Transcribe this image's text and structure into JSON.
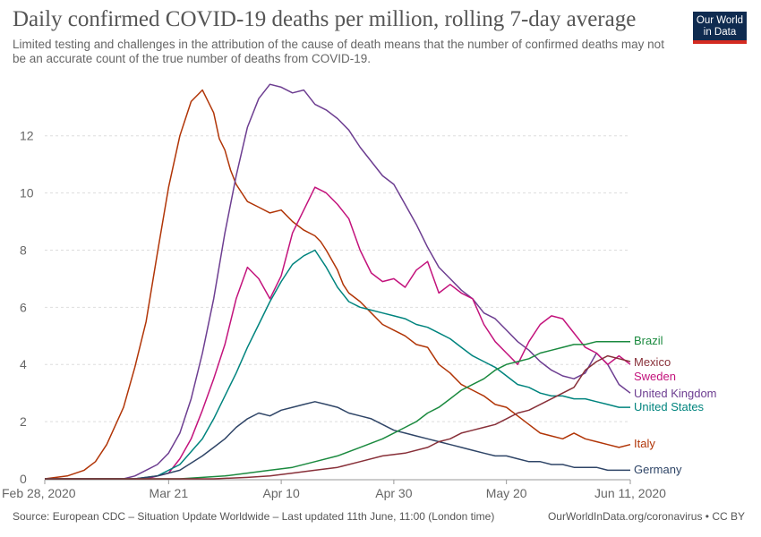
{
  "chart_data": {
    "type": "line",
    "title": "Daily confirmed COVID-19 deaths per million, rolling 7-day average",
    "subtitle": "Limited testing and challenges in the attribution of the cause of death means that the number of confirmed deaths may not be an accurate count of the true number of deaths from COVID-19.",
    "xlabel": "",
    "ylabel": "",
    "x_dates": [
      "2020-02-28",
      "2020-03-21",
      "2020-04-10",
      "2020-04-30",
      "2020-05-20",
      "2020-06-11"
    ],
    "x_tick_labels": [
      "Feb 28, 2020",
      "Mar 21",
      "Apr 10",
      "Apr 30",
      "May 20",
      "Jun 11, 2020"
    ],
    "x_tick_days": [
      0,
      22,
      42,
      62,
      82,
      104
    ],
    "xlim_days": [
      0,
      104
    ],
    "ylim": [
      0,
      13.9
    ],
    "y_ticks": [
      0,
      2,
      4,
      6,
      8,
      10,
      12
    ],
    "grid": "horizontal dashed",
    "series": [
      {
        "name": "Italy",
        "color": "#b13507",
        "x": [
          0,
          4,
          7,
          9,
          11,
          14,
          16,
          18,
          20,
          22,
          24,
          25,
          26,
          28,
          30,
          31,
          32,
          33,
          34,
          36,
          38,
          40,
          42,
          44,
          46,
          48,
          49,
          50,
          52,
          53,
          54,
          56,
          58,
          60,
          62,
          64,
          66,
          68,
          70,
          72,
          74,
          76,
          78,
          80,
          82,
          84,
          86,
          88,
          90,
          92,
          94,
          96,
          98,
          100,
          102,
          104
        ],
        "y": [
          0,
          0.1,
          0.3,
          0.6,
          1.2,
          2.5,
          3.9,
          5.5,
          7.9,
          10.2,
          12.0,
          12.6,
          13.2,
          13.6,
          12.8,
          11.9,
          11.5,
          10.8,
          10.3,
          9.7,
          9.5,
          9.3,
          9.4,
          9.0,
          8.7,
          8.5,
          8.3,
          8.0,
          7.3,
          6.8,
          6.5,
          6.2,
          5.8,
          5.4,
          5.2,
          5.0,
          4.7,
          4.6,
          4.0,
          3.7,
          3.3,
          3.1,
          2.9,
          2.6,
          2.5,
          2.2,
          1.9,
          1.6,
          1.5,
          1.4,
          1.6,
          1.4,
          1.3,
          1.2,
          1.1,
          1.2
        ]
      },
      {
        "name": "United Kingdom",
        "color": "#6d3e91",
        "x": [
          0,
          10,
          14,
          16,
          18,
          20,
          22,
          24,
          26,
          28,
          30,
          32,
          34,
          36,
          38,
          40,
          42,
          44,
          46,
          48,
          50,
          52,
          54,
          56,
          58,
          60,
          62,
          64,
          66,
          68,
          70,
          72,
          74,
          76,
          78,
          80,
          82,
          84,
          86,
          88,
          90,
          92,
          94,
          96,
          98,
          100,
          102,
          104
        ],
        "y": [
          0,
          0,
          0,
          0.1,
          0.3,
          0.5,
          0.9,
          1.6,
          2.8,
          4.4,
          6.3,
          8.6,
          10.6,
          12.3,
          13.3,
          13.8,
          13.7,
          13.5,
          13.6,
          13.1,
          12.9,
          12.6,
          12.2,
          11.6,
          11.1,
          10.6,
          10.3,
          9.6,
          8.9,
          8.1,
          7.4,
          7.0,
          6.6,
          6.3,
          5.8,
          5.6,
          5.2,
          4.8,
          4.5,
          4.1,
          3.8,
          3.6,
          3.5,
          3.7,
          4.4,
          4.0,
          3.3,
          3.0
        ]
      },
      {
        "name": "Sweden",
        "color": "#c3137c",
        "x": [
          0,
          14,
          18,
          22,
          24,
          26,
          28,
          30,
          32,
          34,
          36,
          38,
          40,
          42,
          44,
          46,
          48,
          50,
          52,
          54,
          56,
          58,
          60,
          62,
          64,
          66,
          68,
          70,
          72,
          74,
          76,
          78,
          80,
          82,
          84,
          86,
          88,
          90,
          92,
          94,
          96,
          98,
          100,
          102,
          104
        ],
        "y": [
          0,
          0,
          0,
          0.2,
          0.7,
          1.4,
          2.4,
          3.5,
          4.7,
          6.3,
          7.4,
          7.0,
          6.3,
          7.1,
          8.6,
          9.4,
          10.2,
          10.0,
          9.6,
          9.1,
          8.0,
          7.2,
          6.9,
          7.0,
          6.7,
          7.3,
          7.6,
          6.5,
          6.8,
          6.5,
          6.3,
          5.4,
          4.8,
          4.4,
          4.0,
          4.8,
          5.4,
          5.7,
          5.6,
          5.1,
          4.6,
          4.4,
          4.0,
          4.3,
          4.0
        ]
      },
      {
        "name": "United States",
        "color": "#00847e",
        "x": [
          0,
          16,
          20,
          24,
          28,
          30,
          32,
          34,
          36,
          38,
          40,
          42,
          44,
          46,
          48,
          50,
          52,
          54,
          56,
          58,
          60,
          62,
          64,
          66,
          68,
          70,
          72,
          74,
          76,
          78,
          80,
          82,
          84,
          86,
          88,
          90,
          92,
          94,
          96,
          98,
          100,
          102,
          104
        ],
        "y": [
          0,
          0,
          0.1,
          0.5,
          1.4,
          2.1,
          2.9,
          3.7,
          4.6,
          5.4,
          6.2,
          6.9,
          7.5,
          7.8,
          8.0,
          7.4,
          6.7,
          6.2,
          6.0,
          5.9,
          5.8,
          5.7,
          5.6,
          5.4,
          5.3,
          5.1,
          4.9,
          4.6,
          4.3,
          4.1,
          3.9,
          3.6,
          3.3,
          3.2,
          3.0,
          2.9,
          2.9,
          2.8,
          2.8,
          2.7,
          2.6,
          2.5,
          2.5
        ]
      },
      {
        "name": "Germany",
        "color": "#2f4567",
        "x": [
          0,
          16,
          20,
          24,
          28,
          30,
          32,
          34,
          36,
          38,
          40,
          42,
          44,
          46,
          48,
          50,
          52,
          54,
          56,
          58,
          60,
          62,
          64,
          66,
          68,
          70,
          72,
          74,
          76,
          78,
          80,
          82,
          84,
          86,
          88,
          90,
          92,
          94,
          96,
          98,
          100,
          102,
          104
        ],
        "y": [
          0,
          0,
          0.1,
          0.3,
          0.8,
          1.1,
          1.4,
          1.8,
          2.1,
          2.3,
          2.2,
          2.4,
          2.5,
          2.6,
          2.7,
          2.6,
          2.5,
          2.3,
          2.2,
          2.1,
          1.9,
          1.7,
          1.6,
          1.5,
          1.4,
          1.3,
          1.2,
          1.1,
          1.0,
          0.9,
          0.8,
          0.8,
          0.7,
          0.6,
          0.6,
          0.5,
          0.5,
          0.4,
          0.4,
          0.4,
          0.3,
          0.3,
          0.3
        ]
      },
      {
        "name": "Brazil",
        "color": "#1b8a3f",
        "x": [
          0,
          20,
          24,
          28,
          32,
          36,
          40,
          44,
          48,
          52,
          56,
          60,
          62,
          64,
          66,
          68,
          70,
          72,
          74,
          76,
          78,
          80,
          82,
          84,
          86,
          88,
          90,
          92,
          94,
          96,
          98,
          100,
          102,
          104
        ],
        "y": [
          0,
          0,
          0,
          0.05,
          0.1,
          0.2,
          0.3,
          0.4,
          0.6,
          0.8,
          1.1,
          1.4,
          1.6,
          1.8,
          2.0,
          2.3,
          2.5,
          2.8,
          3.1,
          3.3,
          3.5,
          3.8,
          4.0,
          4.1,
          4.2,
          4.4,
          4.5,
          4.6,
          4.7,
          4.7,
          4.8,
          4.8,
          4.8,
          4.8
        ]
      },
      {
        "name": "Mexico",
        "color": "#883039",
        "x": [
          0,
          30,
          36,
          40,
          44,
          48,
          52,
          56,
          60,
          64,
          68,
          70,
          72,
          74,
          76,
          78,
          80,
          82,
          84,
          86,
          88,
          90,
          92,
          94,
          96,
          98,
          100,
          102,
          104
        ],
        "y": [
          0,
          0,
          0.05,
          0.1,
          0.2,
          0.3,
          0.4,
          0.6,
          0.8,
          0.9,
          1.1,
          1.3,
          1.4,
          1.6,
          1.7,
          1.8,
          1.9,
          2.1,
          2.3,
          2.4,
          2.6,
          2.8,
          3.0,
          3.2,
          3.8,
          4.1,
          4.3,
          4.2,
          4.1
        ]
      }
    ]
  },
  "logo": {
    "line1": "Our World",
    "line2": "in Data"
  },
  "footer": {
    "source": "Source: European CDC – Situation Update Worldwide – Last updated 11th June, 11:00 (London time)",
    "site": "OurWorldInData.org/coronavirus • CC BY"
  }
}
